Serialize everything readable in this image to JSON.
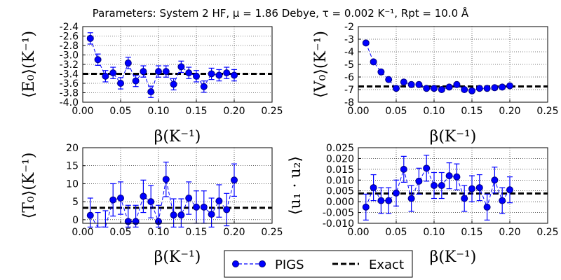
{
  "suptitle": "Parameters: System 2 HF, μ = 1.86 Debye, τ = 0.002 K⁻¹, Rpt = 10.0 Å",
  "legend": {
    "placement": "bottom-center",
    "entries": [
      {
        "label": "PIGS",
        "style": "marker-line",
        "color": "#0000ff"
      },
      {
        "label": "Exact",
        "style": "dashed",
        "color": "#000000"
      }
    ]
  },
  "chart_data": [
    {
      "type": "scatter",
      "ylabel": "⟨E₀⟩(K⁻¹)",
      "xlabel": "β(K⁻¹)",
      "xlim": [
        0,
        0.25
      ],
      "ylim": [
        -4.0,
        -2.4
      ],
      "xticks": [
        "0.00",
        "0.05",
        "0.10",
        "0.15",
        "0.20",
        "0.25"
      ],
      "yticks": [
        "-2.4",
        "-2.6",
        "-2.8",
        "-3.0",
        "-3.2",
        "-3.4",
        "-3.6",
        "-3.8",
        "-4.0"
      ],
      "grid": true,
      "exact": -3.4,
      "series": [
        {
          "name": "PIGS",
          "x": [
            0.01,
            0.02,
            0.03,
            0.04,
            0.05,
            0.06,
            0.07,
            0.08,
            0.09,
            0.1,
            0.11,
            0.12,
            0.13,
            0.14,
            0.15,
            0.16,
            0.17,
            0.18,
            0.19,
            0.2
          ],
          "y": [
            -2.65,
            -3.1,
            -3.45,
            -3.38,
            -3.6,
            -3.17,
            -3.55,
            -3.35,
            -3.78,
            -3.35,
            -3.35,
            -3.62,
            -3.25,
            -3.38,
            -3.45,
            -3.67,
            -3.4,
            -3.43,
            -3.38,
            -3.43
          ],
          "err": [
            0.12,
            0.12,
            0.12,
            0.12,
            0.12,
            0.12,
            0.12,
            0.12,
            0.12,
            0.12,
            0.12,
            0.12,
            0.12,
            0.12,
            0.12,
            0.12,
            0.12,
            0.12,
            0.12,
            0.12
          ]
        }
      ]
    },
    {
      "type": "scatter",
      "ylabel": "⟨V₀⟩(K⁻¹)",
      "xlabel": "β(K⁻¹)",
      "xlim": [
        0,
        0.25
      ],
      "ylim": [
        -8,
        -2
      ],
      "xticks": [
        "0.00",
        "0.05",
        "0.10",
        "0.15",
        "0.20",
        "0.25"
      ],
      "yticks": [
        "-2",
        "-3",
        "-4",
        "-5",
        "-6",
        "-7",
        "-8"
      ],
      "grid": true,
      "exact": -6.75,
      "series": [
        {
          "name": "PIGS",
          "x": [
            0.01,
            0.02,
            0.03,
            0.04,
            0.05,
            0.06,
            0.07,
            0.08,
            0.09,
            0.1,
            0.11,
            0.12,
            0.13,
            0.14,
            0.15,
            0.16,
            0.17,
            0.18,
            0.19,
            0.2
          ],
          "y": [
            -3.3,
            -4.8,
            -5.6,
            -6.2,
            -6.9,
            -6.4,
            -6.6,
            -6.6,
            -6.9,
            -6.9,
            -7.0,
            -6.8,
            -6.6,
            -7.0,
            -7.1,
            -6.9,
            -6.9,
            -6.85,
            -6.8,
            -6.7
          ],
          "err": [
            0.1,
            0.1,
            0.1,
            0.1,
            0.1,
            0.1,
            0.1,
            0.1,
            0.1,
            0.1,
            0.1,
            0.1,
            0.1,
            0.1,
            0.1,
            0.1,
            0.1,
            0.1,
            0.1,
            0.1
          ]
        }
      ]
    },
    {
      "type": "scatter",
      "ylabel": "⟨T₀⟩(K⁻¹)",
      "xlabel": "β(K⁻¹)",
      "xlim": [
        0,
        0.25
      ],
      "ylim": [
        -1,
        20
      ],
      "xticks": [
        "0.00",
        "0.05",
        "0.10",
        "0.15",
        "0.20",
        "0.25"
      ],
      "yticks": [
        "0",
        "5",
        "10",
        "15",
        "20"
      ],
      "grid": true,
      "exact": 3.3,
      "series": [
        {
          "name": "PIGS",
          "x": [
            0.01,
            0.02,
            0.03,
            0.04,
            0.05,
            0.06,
            0.07,
            0.08,
            0.09,
            0.1,
            0.11,
            0.12,
            0.13,
            0.14,
            0.15,
            0.16,
            0.17,
            0.18,
            0.19,
            0.2
          ],
          "y": [
            1.2,
            -3.0,
            -2.0,
            5.5,
            6.0,
            -0.5,
            -0.5,
            6.5,
            5.0,
            -0.5,
            11.2,
            1.3,
            1.3,
            6.0,
            3.5,
            3.5,
            1.5,
            5.2,
            2.8,
            11.0
          ],
          "err": [
            4.8,
            5.0,
            4.5,
            4.5,
            4.5,
            4.5,
            4.5,
            4.5,
            4.5,
            4.5,
            4.8,
            4.5,
            4.5,
            4.5,
            4.5,
            4.5,
            4.5,
            4.5,
            4.5,
            4.5
          ]
        }
      ]
    },
    {
      "type": "scatter",
      "ylabel": "⟨u₁ · u₂⟩",
      "xlabel": "β(K⁻¹)",
      "xlim": [
        0,
        0.25
      ],
      "ylim": [
        -0.01,
        0.025
      ],
      "xticks": [
        "0.00",
        "0.05",
        "0.10",
        "0.15",
        "0.20",
        "0.25"
      ],
      "yticks": [
        "0.025",
        "0.020",
        "0.015",
        "0.010",
        "0.005",
        "0.000",
        "-0.005",
        "-0.010"
      ],
      "grid": true,
      "exact": 0.0038,
      "series": [
        {
          "name": "PIGS",
          "x": [
            0.01,
            0.02,
            0.03,
            0.04,
            0.05,
            0.06,
            0.07,
            0.08,
            0.09,
            0.1,
            0.11,
            0.12,
            0.13,
            0.14,
            0.15,
            0.16,
            0.17,
            0.18,
            0.19,
            0.2
          ],
          "y": [
            -0.0025,
            0.0065,
            0.0005,
            0.0005,
            0.004,
            0.015,
            0.0015,
            0.0095,
            0.0155,
            0.0075,
            0.0075,
            0.012,
            0.0115,
            0.0015,
            0.006,
            0.0065,
            -0.0025,
            0.01,
            0.0005,
            0.0055
          ],
          "err": [
            0.006,
            0.006,
            0.006,
            0.006,
            0.006,
            0.006,
            0.006,
            0.006,
            0.006,
            0.006,
            0.006,
            0.006,
            0.006,
            0.006,
            0.006,
            0.006,
            0.006,
            0.006,
            0.006,
            0.006
          ]
        }
      ]
    }
  ]
}
